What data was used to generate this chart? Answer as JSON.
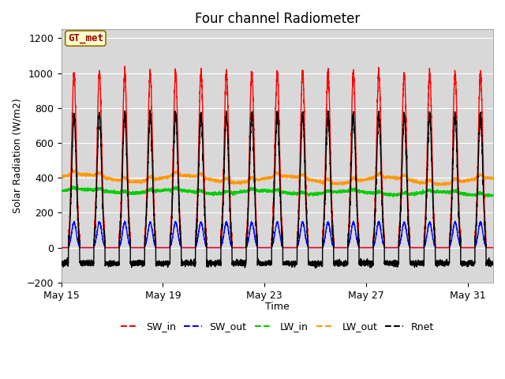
{
  "title": "Four channel Radiometer",
  "xlabel": "Time",
  "ylabel": "Solar Radiation (W/m2)",
  "ylim": [
    -200,
    1250
  ],
  "yticks": [
    -200,
    0,
    200,
    400,
    600,
    800,
    1000,
    1200
  ],
  "xtick_labels": [
    "May 15",
    "May 19",
    "May 23",
    "May 27",
    "May 31"
  ],
  "xtick_positions": [
    0,
    4,
    8,
    12,
    16
  ],
  "background_color": "#ffffff",
  "plot_bg_color": "#d8d8d8",
  "annotation_text": "GT_met",
  "annotation_bg": "#ffffcc",
  "annotation_border": "#8b7000",
  "annotation_text_color": "#990000",
  "series": {
    "SW_in": {
      "color": "#ff0000",
      "lw": 1.0
    },
    "SW_out": {
      "color": "#0000ff",
      "lw": 1.0
    },
    "LW_in": {
      "color": "#00cc00",
      "lw": 1.0
    },
    "LW_out": {
      "color": "#ff9900",
      "lw": 1.0
    },
    "Rnet": {
      "color": "#000000",
      "lw": 1.0
    }
  },
  "legend_labels": [
    "SW_in",
    "SW_out",
    "LW_in",
    "LW_out",
    "Rnet"
  ],
  "legend_colors": [
    "#ff0000",
    "#0000ff",
    "#00cc00",
    "#ff9900",
    "#000000"
  ],
  "n_days": 17,
  "pts_per_day": 288,
  "SW_in_peak": 1000,
  "SW_out_peak": 145,
  "LW_in_base": 325,
  "LW_out_base": 400,
  "Rnet_day_peak": 770,
  "Rnet_night": -90
}
